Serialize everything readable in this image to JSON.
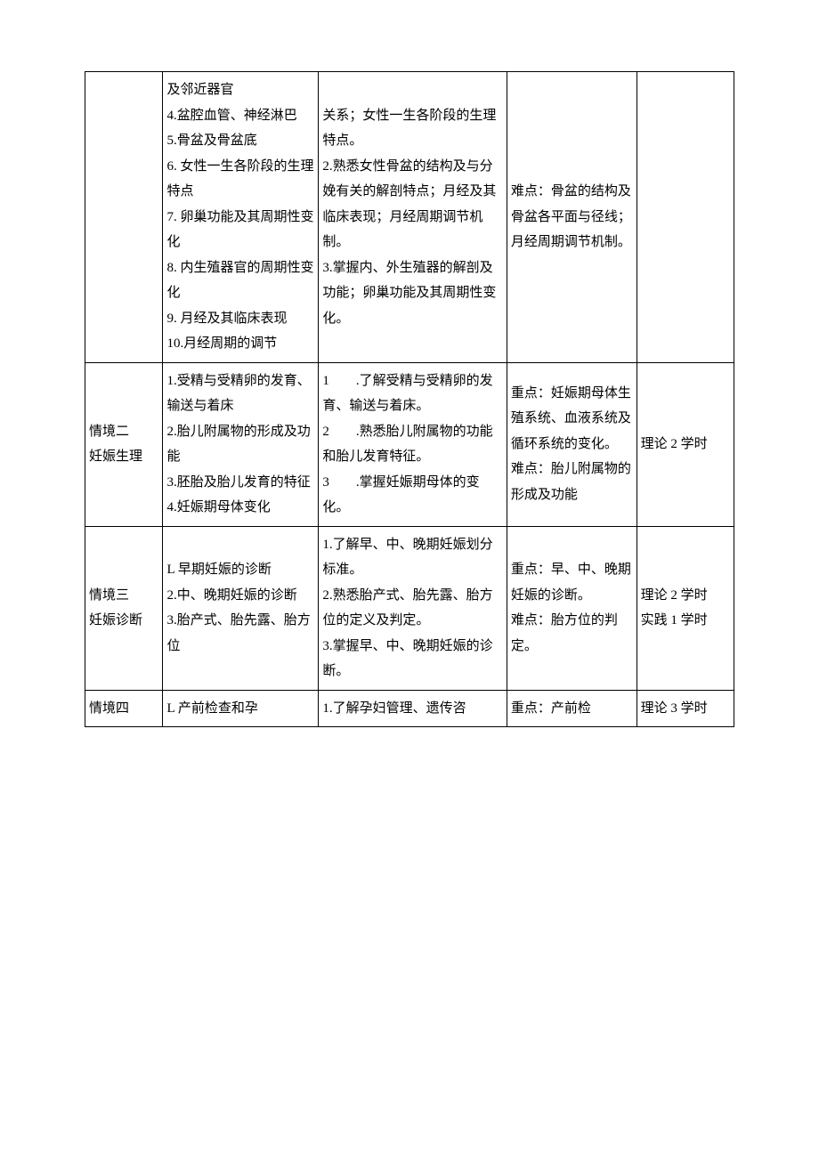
{
  "table": {
    "columns": [
      {
        "class": "col1"
      },
      {
        "class": "col2"
      },
      {
        "class": "col3"
      },
      {
        "class": "col4"
      },
      {
        "class": "col5"
      }
    ],
    "rows": [
      {
        "c1": "",
        "c2": "及邻近器官\n4.盆腔血管、神经淋巴\n5.骨盆及骨盆底\n6. 女性一生各阶段的生理特点\n7. 卵巢功能及其周期性变化\n8. 内生殖器官的周期性变化\n9. 月经及其临床表现\n10.月经周期的调节",
        "c3": "关系；女性一生各阶段的生理特点。\n2.熟悉女性骨盆的结构及与分娩有关的解剖特点；月经及其临床表现；月经周期调节机制。\n3.掌握内、外生殖器的解剖及功能；卵巢功能及其周期性变化。",
        "c4": "难点：骨盆的结构及骨盆各平面与径线；月经周期调节机制。",
        "c5": ""
      },
      {
        "c1": "情境二\n妊娠生理",
        "c2": "1.受精与受精卵的发育、输送与着床\n2.胎儿附属物的形成及功能\n3.胚胎及胎儿发育的特征\n4.妊娠期母体变化",
        "c3": "1　　.了解受精与受精卵的发育、输送与着床。\n2　　.熟悉胎儿附属物的功能和胎儿发育特征。\n3　　.掌握妊娠期母体的变化。",
        "c4": "重点：妊娠期母体生殖系统、血液系统及循环系统的变化。\n难点：胎儿附属物的形成及功能",
        "c5": "理论 2 学时"
      },
      {
        "c1": "情境三\n妊娠诊断",
        "c2": "L 早期妊娠的诊断\n2.中、晚期妊娠的诊断\n3.胎产式、胎先露、胎方位",
        "c3": "1.了解早、中、晚期妊娠划分标准。\n2.熟悉胎产式、胎先露、胎方位的定义及判定。\n3.掌握早、中、晚期妊娠的诊断。",
        "c4": "重点：早、中、晚期妊娠的诊断。\n难点：胎方位的判定。",
        "c5": "理论 2 学时\n实践 1 学时"
      },
      {
        "c1": "情境四",
        "c2": "L 产前检查和孕",
        "c3": "1.了解孕妇管理、遗传咨",
        "c4": "重点：产前检",
        "c5": "理论 3 学时"
      }
    ]
  }
}
